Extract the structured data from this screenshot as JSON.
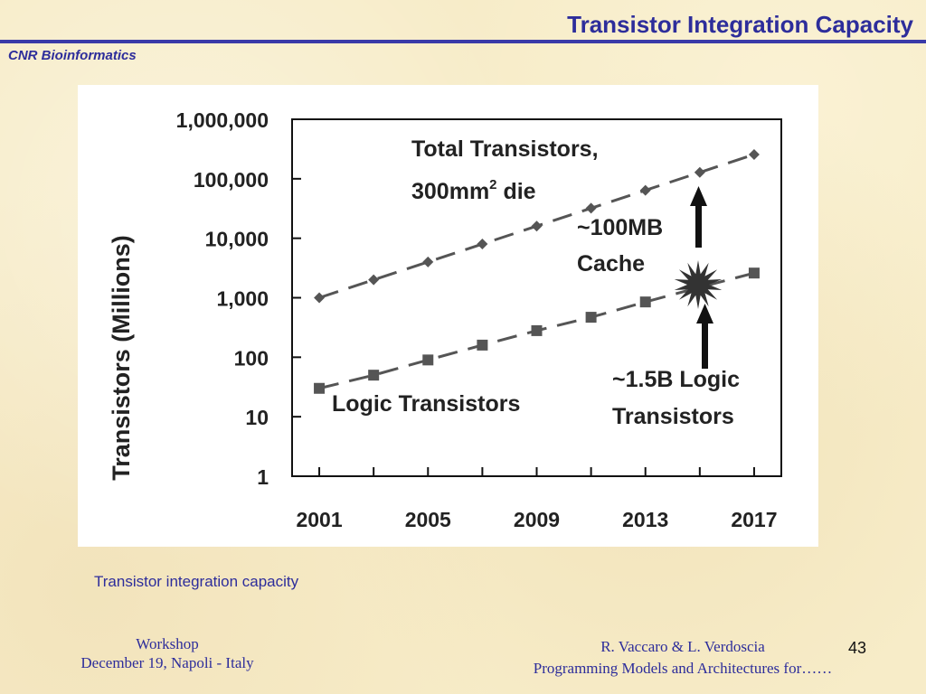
{
  "slide": {
    "title": "Transistor Integration Capacity",
    "organization": "CNR Bioinformatics",
    "caption": "Transistor integration capacity",
    "footer_left_line1": "Workshop",
    "footer_left_line2": "December 19, Napoli - Italy",
    "footer_right_line1": "R. Vaccaro & L. Verdoscia",
    "footer_right_line2": "Programming Models and Architectures for……",
    "page_number": "43"
  },
  "colors": {
    "title": "#2d2d9b",
    "rule": "#3a3aa8",
    "series": "#555555"
  },
  "chart_data": {
    "type": "line",
    "ylabel": "Transistors (Millions)",
    "xlabel": "",
    "yscale": "log",
    "ylim": [
      1,
      1000000
    ],
    "xlim": [
      2001,
      2017
    ],
    "x_tick_labels": [
      "2001",
      "2005",
      "2009",
      "2013",
      "2017"
    ],
    "y_tick_labels": [
      "1",
      "10",
      "100",
      "1,000",
      "10,000",
      "100,000",
      "1,000,000"
    ],
    "series": [
      {
        "name_line1": "Total Transistors,",
        "name_line2_base": "300mm",
        "name_line2_sup": "2",
        "name_line2_tail": " die",
        "marker": "diamond",
        "x": [
          2001,
          2003,
          2005,
          2007,
          2009,
          2011,
          2013,
          2015,
          2017
        ],
        "y": [
          1000,
          2000,
          4000,
          8000,
          16000,
          32000,
          64000,
          128000,
          256000
        ]
      },
      {
        "name": "Logic Transistors",
        "marker": "square",
        "x": [
          2001,
          2003,
          2005,
          2007,
          2009,
          2011,
          2013,
          2015,
          2017
        ],
        "y": [
          30,
          50,
          90,
          160,
          280,
          470,
          850,
          1500,
          2600
        ]
      }
    ],
    "annotations": [
      {
        "line1": "~100MB",
        "line2": "Cache"
      },
      {
        "line1": "~1.5B Logic",
        "line2": "Transistors"
      }
    ]
  }
}
